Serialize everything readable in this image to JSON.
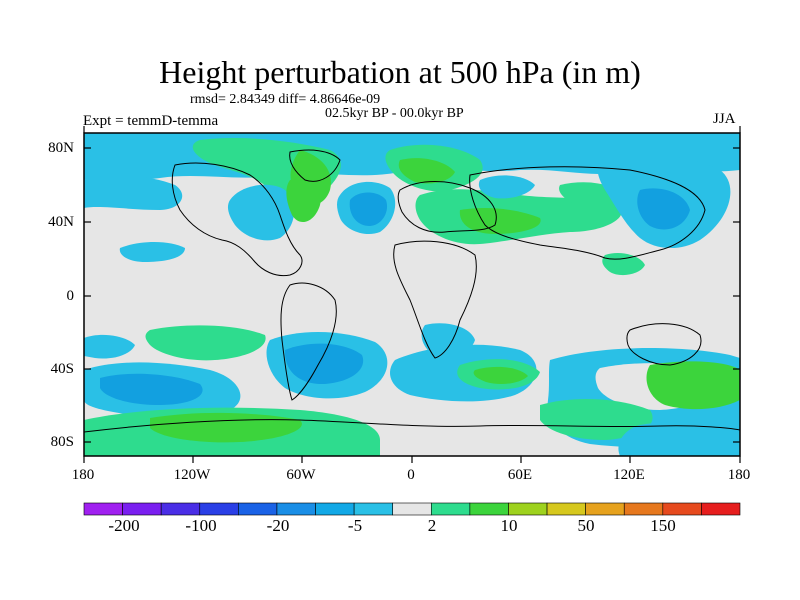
{
  "title": "Height perturbation at 500 hPa (in m)",
  "stats_line": "rmsd= 2.84349 diff= 4.86646e-09",
  "period": "02.5kyr BP - 00.0kyr BP",
  "experiment": "Expt = temmD-temma",
  "season": "JJA",
  "lat_ticks": [
    "80N",
    "40N",
    "0",
    "40S",
    "80S"
  ],
  "lon_ticks": [
    "180",
    "120W",
    "60W",
    "0",
    "60E",
    "120E",
    "180"
  ],
  "colorbar": {
    "labels": [
      "-200",
      "-100",
      "-20",
      "-5",
      "2",
      "10",
      "50",
      "150"
    ],
    "colors": [
      "#a020f0",
      "#7a1ff0",
      "#4a2ee6",
      "#2a3fe6",
      "#1a62e6",
      "#1a8ee6",
      "#12a8e6",
      "#2ac0e6",
      "#e6e6e6",
      "#2edc8e",
      "#3cd43c",
      "#9ed21e",
      "#d6c81e",
      "#e6a21e",
      "#e6781e",
      "#e64a1e",
      "#e61e1e"
    ]
  },
  "map_colors": {
    "neutral": "#e6e6e6",
    "light_blue": "#2ac0e6",
    "blue": "#12a0e0",
    "cyan_green": "#2edc8e",
    "green": "#3cd43c",
    "coast": "#000000"
  }
}
